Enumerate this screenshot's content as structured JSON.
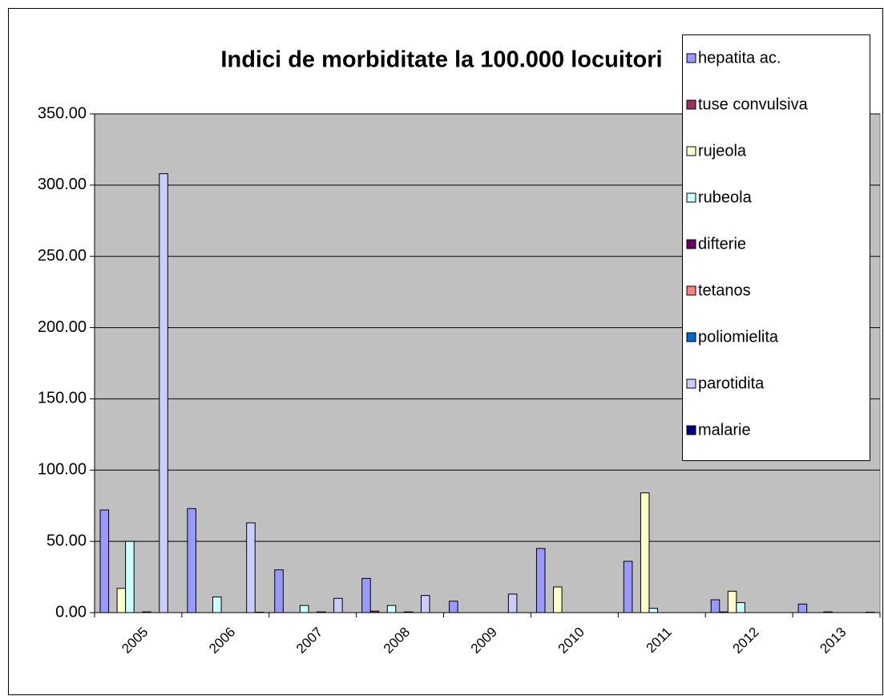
{
  "chart_data": {
    "type": "bar",
    "title": "Indici de morbiditate la 100.000 locuitori",
    "categories": [
      "2005",
      "2006",
      "2007",
      "2008",
      "2009",
      "2010",
      "2011",
      "2012",
      "2013"
    ],
    "series": [
      {
        "name": "hepatita ac.",
        "color": "#9999ff",
        "values": [
          72,
          73,
          30,
          24,
          8,
          45,
          36,
          9,
          6
        ]
      },
      {
        "name": "tuse convulsiva",
        "color": "#993366",
        "values": [
          0,
          0,
          0,
          1,
          0,
          0,
          0,
          0.5,
          0
        ]
      },
      {
        "name": "rujeola",
        "color": "#ffffcc",
        "values": [
          17,
          0,
          0,
          0,
          0,
          18,
          84,
          15,
          0
        ]
      },
      {
        "name": "rubeola",
        "color": "#ccffff",
        "values": [
          50,
          11,
          5,
          5,
          0,
          0,
          3,
          7,
          0.5
        ]
      },
      {
        "name": "difterie",
        "color": "#660066",
        "values": [
          0,
          0,
          0,
          0,
          0,
          0,
          0,
          0,
          0
        ]
      },
      {
        "name": "tetanos",
        "color": "#ff8080",
        "values": [
          0.5,
          0,
          0.5,
          0.5,
          0,
          0,
          0,
          0,
          0
        ]
      },
      {
        "name": "poliomielita",
        "color": "#0066cc",
        "values": [
          0,
          0,
          0,
          0,
          0,
          0,
          0,
          0,
          0
        ]
      },
      {
        "name": "parotidita",
        "color": "#ccccff",
        "values": [
          308,
          63,
          10,
          12,
          13,
          0,
          0,
          0,
          0
        ]
      },
      {
        "name": "malarie",
        "color": "#000080",
        "values": [
          0,
          0.3,
          0,
          0,
          0,
          0,
          0,
          0,
          0.3
        ]
      }
    ],
    "ylim": [
      0,
      350
    ],
    "yticks": [
      {
        "value": 0,
        "label": "0.00"
      },
      {
        "value": 50,
        "label": "50.00"
      },
      {
        "value": 100,
        "label": "100.00"
      },
      {
        "value": 150,
        "label": "150.00"
      },
      {
        "value": 200,
        "label": "200.00"
      },
      {
        "value": 250,
        "label": "250.00"
      },
      {
        "value": 300,
        "label": "300.00"
      },
      {
        "value": 350,
        "label": "350.00"
      }
    ],
    "grid": true,
    "legend": "right",
    "background": "#c0c0c0"
  }
}
